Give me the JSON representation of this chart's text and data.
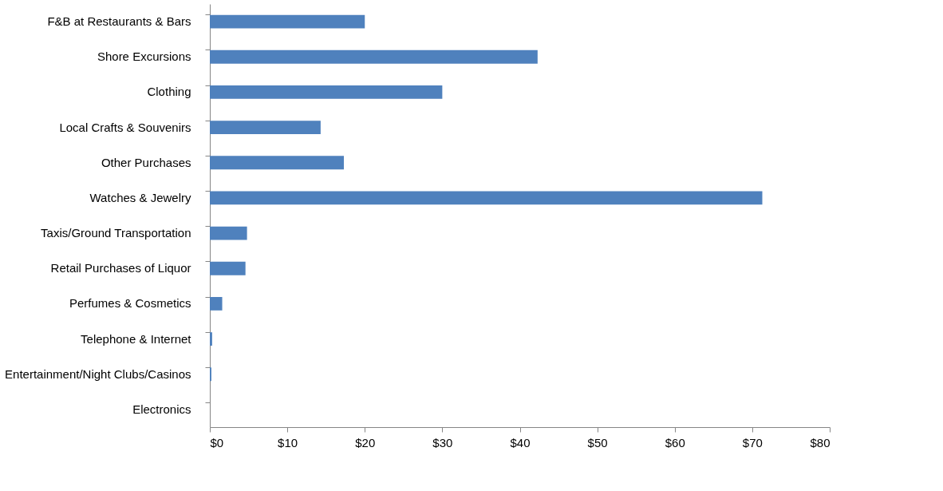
{
  "chart_data": {
    "type": "bar",
    "orientation": "horizontal",
    "categories": [
      "F&B at Restaurants & Bars",
      "Shore Excursions",
      "Clothing",
      "Local Crafts & Souvenirs",
      "Other Purchases",
      "Watches & Jewelry",
      "Taxis/Ground Transportation",
      "Retail Purchases of Liquor",
      "Perfumes & Cosmetics",
      "Telephone & Internet",
      "Entertainment/Night Clubs/Casinos",
      "Electronics"
    ],
    "values": [
      20,
      42.3,
      30,
      14.3,
      17.3,
      71.3,
      4.8,
      4.6,
      1.6,
      0.3,
      0.2,
      0
    ],
    "color": "#4f81bd",
    "xlim": [
      0,
      80
    ],
    "xticks": [
      {
        "value": 0,
        "label": "$0"
      },
      {
        "value": 10,
        "label": "$10"
      },
      {
        "value": 20,
        "label": "$20"
      },
      {
        "value": 30,
        "label": "$30"
      },
      {
        "value": 40,
        "label": "$40"
      },
      {
        "value": 50,
        "label": "$50"
      },
      {
        "value": 60,
        "label": "$60"
      },
      {
        "value": 70,
        "label": "$70"
      },
      {
        "value": 80,
        "label": "$80"
      }
    ],
    "grid": false
  }
}
